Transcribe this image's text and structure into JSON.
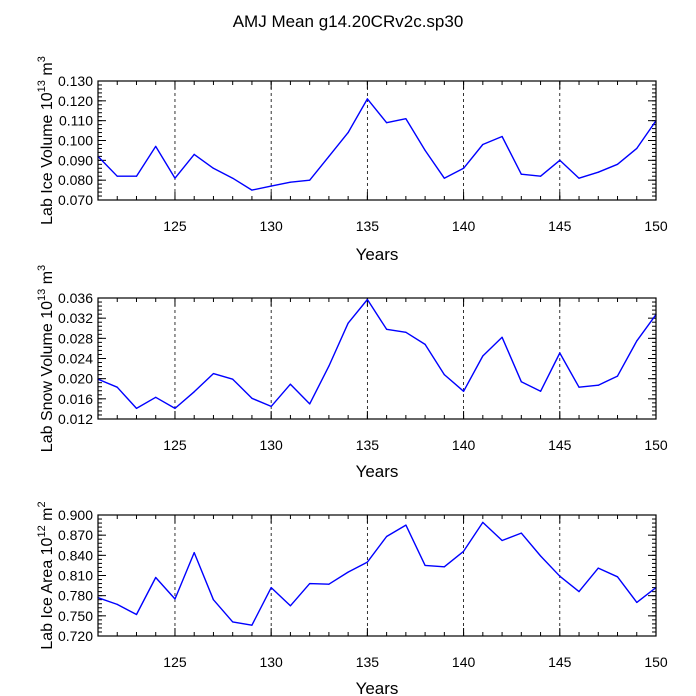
{
  "title": "AMJ Mean g14.20CRv2c.sp30",
  "line_color": "#0000ff",
  "chart_data": [
    {
      "type": "line",
      "ylabel_main": "Lab Ice Volume 10",
      "ylabel_exp": "13",
      "ylabel_unit": "m",
      "ylabel_unit_exp": "3",
      "xlabel": "Years",
      "xlim": [
        121,
        150
      ],
      "ylim": [
        0.07,
        0.13
      ],
      "xticks": [
        125,
        130,
        135,
        140,
        145,
        150
      ],
      "xtick_labels": [
        "125",
        "130",
        "135",
        "140",
        "145",
        "150"
      ],
      "yticks": [
        0.07,
        0.08,
        0.09,
        0.1,
        0.11,
        0.12,
        0.13
      ],
      "ytick_labels": [
        "0.070",
        "0.080",
        "0.090",
        "0.100",
        "0.110",
        "0.120",
        "0.130"
      ],
      "grid_x": [
        125,
        130,
        135,
        140,
        145
      ],
      "x": [
        121,
        122,
        123,
        124,
        125,
        126,
        127,
        128,
        129,
        130,
        131,
        132,
        133,
        134,
        135,
        136,
        137,
        138,
        139,
        140,
        141,
        142,
        143,
        144,
        145,
        146,
        147,
        148,
        149,
        150
      ],
      "y": [
        0.092,
        0.082,
        0.082,
        0.097,
        0.081,
        0.093,
        0.086,
        0.081,
        0.075,
        0.077,
        0.079,
        0.08,
        0.092,
        0.104,
        0.121,
        0.109,
        0.111,
        0.095,
        0.081,
        0.086,
        0.098,
        0.102,
        0.083,
        0.082,
        0.09,
        0.081,
        0.084,
        0.088,
        0.096,
        0.11
      ]
    },
    {
      "type": "line",
      "ylabel_main": "Lab Snow Volume 10",
      "ylabel_exp": "13",
      "ylabel_unit": "m",
      "ylabel_unit_exp": "3",
      "xlabel": "Years",
      "xlim": [
        121,
        150
      ],
      "ylim": [
        0.012,
        0.036
      ],
      "xticks": [
        125,
        130,
        135,
        140,
        145,
        150
      ],
      "xtick_labels": [
        "125",
        "130",
        "135",
        "140",
        "145",
        "150"
      ],
      "yticks": [
        0.012,
        0.016,
        0.02,
        0.024,
        0.028,
        0.032,
        0.036
      ],
      "ytick_labels": [
        "0.012",
        "0.016",
        "0.020",
        "0.024",
        "0.028",
        "0.032",
        "0.036"
      ],
      "grid_x": [
        125,
        130,
        135,
        140,
        145
      ],
      "x": [
        121,
        122,
        123,
        124,
        125,
        126,
        127,
        128,
        129,
        130,
        131,
        132,
        133,
        134,
        135,
        136,
        137,
        138,
        139,
        140,
        141,
        142,
        143,
        144,
        145,
        146,
        147,
        148,
        149,
        150
      ],
      "y": [
        0.0199,
        0.0183,
        0.0141,
        0.0163,
        0.0141,
        0.0174,
        0.021,
        0.0199,
        0.0161,
        0.0145,
        0.0189,
        0.015,
        0.0225,
        0.031,
        0.0357,
        0.0298,
        0.0292,
        0.0268,
        0.0208,
        0.0175,
        0.0245,
        0.0282,
        0.0194,
        0.0175,
        0.0251,
        0.0183,
        0.0187,
        0.0205,
        0.0275,
        0.0327
      ]
    },
    {
      "type": "line",
      "ylabel_main": "Lab Ice Area 10",
      "ylabel_exp": "12",
      "ylabel_unit": "m",
      "ylabel_unit_exp": "2",
      "xlabel": "Years",
      "xlim": [
        121,
        150
      ],
      "ylim": [
        0.72,
        0.9
      ],
      "xticks": [
        125,
        130,
        135,
        140,
        145,
        150
      ],
      "xtick_labels": [
        "125",
        "130",
        "135",
        "140",
        "145",
        "150"
      ],
      "yticks": [
        0.72,
        0.75,
        0.78,
        0.81,
        0.84,
        0.87,
        0.9
      ],
      "ytick_labels": [
        "0.720",
        "0.750",
        "0.780",
        "0.810",
        "0.840",
        "0.870",
        "0.900"
      ],
      "grid_x": [
        125,
        130,
        135,
        140,
        145
      ],
      "x": [
        121,
        122,
        123,
        124,
        125,
        126,
        127,
        128,
        129,
        130,
        131,
        132,
        133,
        134,
        135,
        136,
        137,
        138,
        139,
        140,
        141,
        142,
        143,
        144,
        145,
        146,
        147,
        148,
        149,
        150
      ],
      "y": [
        0.777,
        0.767,
        0.752,
        0.807,
        0.775,
        0.844,
        0.774,
        0.741,
        0.736,
        0.792,
        0.765,
        0.798,
        0.797,
        0.815,
        0.83,
        0.868,
        0.885,
        0.825,
        0.823,
        0.846,
        0.889,
        0.862,
        0.873,
        0.839,
        0.809,
        0.786,
        0.821,
        0.808,
        0.77,
        0.792
      ]
    }
  ]
}
